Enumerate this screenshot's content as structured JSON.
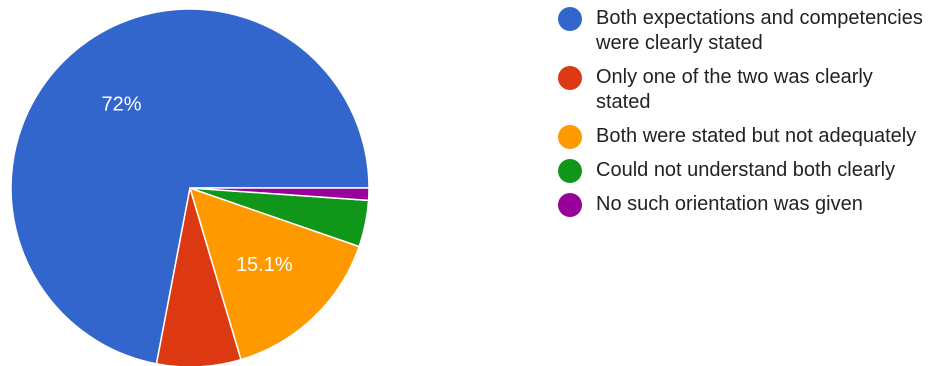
{
  "chart_data": {
    "type": "pie",
    "categories": [
      "Both expectations and competencies were clearly stated",
      "Only one of the two was clearly stated",
      "Both were stated but not adequately",
      "Could not understand both clearly",
      "No such orientation was given"
    ],
    "values": [
      72,
      7.6,
      15.1,
      4.2,
      1.1
    ],
    "slice_labels": [
      "72%",
      "",
      "15.1%",
      "",
      ""
    ],
    "colors": [
      "#3366cc",
      "#dc3912",
      "#ff9900",
      "#109618",
      "#990099"
    ],
    "legend_position": "right"
  }
}
